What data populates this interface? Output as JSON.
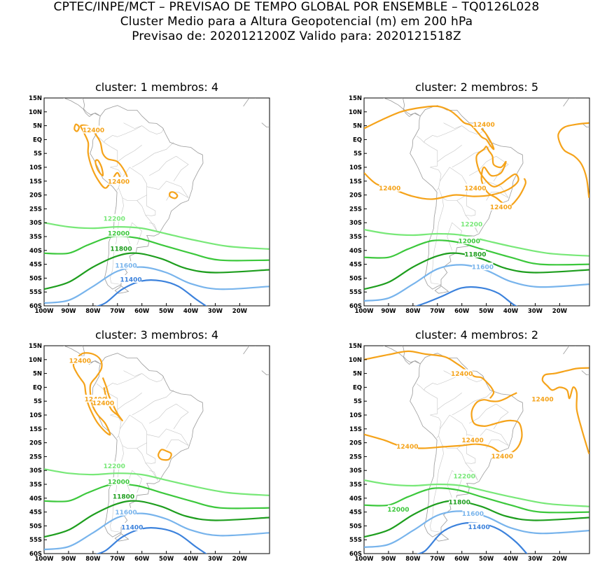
{
  "header": {
    "line1": "CPTEC/INPE/MCT – PREVISAO DE TEMPO GLOBAL POR ENSEMBLE – TQ0126L028",
    "line2": "Cluster Medio para a Altura Geopotencial (m) em 200 hPa",
    "line3": "Previsao de: 2020121200Z    Valido para: 2020121518Z"
  },
  "axes": {
    "lat_ticks": [
      "15N",
      "10N",
      "5N",
      "EQ",
      "5S",
      "10S",
      "15S",
      "20S",
      "25S",
      "30S",
      "35S",
      "40S",
      "45S",
      "50S",
      "55S",
      "60S"
    ],
    "lon_ticks": [
      "100W",
      "90W",
      "80W",
      "70W",
      "60W",
      "50W",
      "40W",
      "30W",
      "20W"
    ]
  },
  "colors": {
    "c12400": "#f5a31a",
    "c12200": "#78e878",
    "c12000": "#3cc83c",
    "c11800": "#1e9e1e",
    "c11600": "#78b4ec",
    "c11400": "#3c82dc",
    "c11200": "#1e5ac8"
  },
  "panels": [
    {
      "title": "cluster: 1   membros: 4",
      "labels": [
        {
          "text": "12400",
          "c": "c12400"
        },
        {
          "text": "12400",
          "c": "c12400"
        },
        {
          "text": "12200",
          "c": "c12200"
        },
        {
          "text": "12000",
          "c": "c12000"
        },
        {
          "text": "11800",
          "c": "c11800"
        },
        {
          "text": "11600",
          "c": "c11600"
        },
        {
          "text": "11400",
          "c": "c11400"
        }
      ]
    },
    {
      "title": "cluster: 2   membros: 5",
      "labels": [
        {
          "text": "12400",
          "c": "c12400"
        },
        {
          "text": "12400",
          "c": "c12400"
        },
        {
          "text": "12400",
          "c": "c12400"
        },
        {
          "text": "12400",
          "c": "c12400"
        },
        {
          "text": "12200",
          "c": "c12200"
        },
        {
          "text": "12000",
          "c": "c12000"
        },
        {
          "text": "11800",
          "c": "c11800"
        },
        {
          "text": "11600",
          "c": "c11600"
        }
      ]
    },
    {
      "title": "cluster: 3   membros: 4",
      "labels": [
        {
          "text": "12400",
          "c": "c12400"
        },
        {
          "text": "12400",
          "c": "c12400"
        },
        {
          "text": "12400",
          "c": "c12400"
        },
        {
          "text": "12200",
          "c": "c12200"
        },
        {
          "text": "12000",
          "c": "c12000"
        },
        {
          "text": "11800",
          "c": "c11800"
        },
        {
          "text": "11600",
          "c": "c11600"
        },
        {
          "text": "11400",
          "c": "c11400"
        }
      ]
    },
    {
      "title": "cluster: 4   membros: 2",
      "labels": [
        {
          "text": "12400",
          "c": "c12400"
        },
        {
          "text": "12400",
          "c": "c12400"
        },
        {
          "text": "12400",
          "c": "c12400"
        },
        {
          "text": "12400",
          "c": "c12400"
        },
        {
          "text": "12400",
          "c": "c12400"
        },
        {
          "text": "12200",
          "c": "c12200"
        },
        {
          "text": "12000",
          "c": "c12000"
        },
        {
          "text": "11800",
          "c": "c11800"
        },
        {
          "text": "11600",
          "c": "c11600"
        },
        {
          "text": "11400",
          "c": "c11400"
        }
      ]
    }
  ]
}
